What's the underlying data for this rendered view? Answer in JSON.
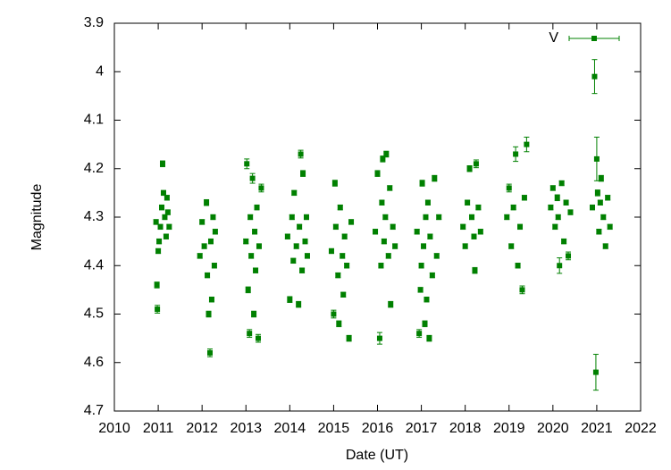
{
  "chart_data": {
    "type": "scatter",
    "xlabel": "Date (UT)",
    "ylabel": "Magnitude",
    "xlim": [
      2010,
      2022
    ],
    "xticks": [
      2010,
      2011,
      2012,
      2013,
      2014,
      2015,
      2016,
      2017,
      2018,
      2019,
      2020,
      2021,
      2022
    ],
    "ylim": [
      3.9,
      4.7
    ],
    "yticks": [
      3.9,
      4,
      4.1,
      4.2,
      4.3,
      4.4,
      4.5,
      4.6,
      4.7
    ],
    "y_inverted": true,
    "legend": "top-right",
    "series": [
      {
        "name": "V",
        "color": "#008000",
        "x": [
          2010.95,
          2010.97,
          2010.98,
          2011.0,
          2011.02,
          2011.05,
          2011.08,
          2011.1,
          2011.12,
          2011.15,
          2011.18,
          2011.2,
          2011.22,
          2011.25,
          2011.95,
          2012.0,
          2012.05,
          2012.1,
          2012.12,
          2012.15,
          2012.18,
          2012.2,
          2012.22,
          2012.25,
          2012.28,
          2012.3,
          2013.0,
          2013.02,
          2013.05,
          2013.08,
          2013.1,
          2013.12,
          2013.15,
          2013.18,
          2013.2,
          2013.22,
          2013.25,
          2013.28,
          2013.3,
          2013.35,
          2013.95,
          2014.0,
          2014.05,
          2014.08,
          2014.1,
          2014.15,
          2014.2,
          2014.22,
          2014.25,
          2014.28,
          2014.3,
          2014.35,
          2014.38,
          2014.4,
          2014.95,
          2015.0,
          2015.03,
          2015.05,
          2015.1,
          2015.12,
          2015.15,
          2015.2,
          2015.22,
          2015.25,
          2015.3,
          2015.35,
          2015.4,
          2015.95,
          2016.0,
          2016.05,
          2016.08,
          2016.1,
          2016.12,
          2016.15,
          2016.18,
          2016.2,
          2016.25,
          2016.28,
          2016.3,
          2016.35,
          2016.4,
          2016.9,
          2016.95,
          2016.98,
          2017.0,
          2017.02,
          2017.05,
          2017.08,
          2017.1,
          2017.12,
          2017.15,
          2017.18,
          2017.2,
          2017.25,
          2017.3,
          2017.35,
          2017.4,
          2017.95,
          2018.0,
          2018.05,
          2018.1,
          2018.15,
          2018.2,
          2018.22,
          2018.25,
          2018.3,
          2018.35,
          2018.95,
          2019.0,
          2019.05,
          2019.1,
          2019.15,
          2019.2,
          2019.25,
          2019.3,
          2019.35,
          2019.4,
          2019.95,
          2020.0,
          2020.05,
          2020.1,
          2020.12,
          2020.15,
          2020.2,
          2020.25,
          2020.3,
          2020.35,
          2020.4,
          2020.9,
          2020.95,
          2020.98,
          2021.0,
          2021.02,
          2021.05,
          2021.08,
          2021.1,
          2021.15,
          2021.2,
          2021.25,
          2021.3
        ],
        "values": [
          4.31,
          4.44,
          4.49,
          4.37,
          4.35,
          4.32,
          4.28,
          4.19,
          4.25,
          4.3,
          4.34,
          4.26,
          4.29,
          4.32,
          4.38,
          4.31,
          4.36,
          4.27,
          4.42,
          4.5,
          4.58,
          4.35,
          4.47,
          4.3,
          4.4,
          4.33,
          4.35,
          4.19,
          4.45,
          4.54,
          4.3,
          4.38,
          4.22,
          4.5,
          4.33,
          4.41,
          4.28,
          4.55,
          4.36,
          4.24,
          4.34,
          4.47,
          4.3,
          4.39,
          4.25,
          4.36,
          4.48,
          4.32,
          4.17,
          4.41,
          4.21,
          4.35,
          4.3,
          4.38,
          4.37,
          4.5,
          4.23,
          4.32,
          4.42,
          4.52,
          4.28,
          4.38,
          4.46,
          4.34,
          4.4,
          4.55,
          4.31,
          4.33,
          4.21,
          4.55,
          4.4,
          4.27,
          4.18,
          4.35,
          4.3,
          4.17,
          4.38,
          4.24,
          4.48,
          4.32,
          4.36,
          4.33,
          4.54,
          4.45,
          4.4,
          4.23,
          4.36,
          4.52,
          4.3,
          4.47,
          4.27,
          4.55,
          4.34,
          4.42,
          4.22,
          4.38,
          4.3,
          4.32,
          4.36,
          4.27,
          4.2,
          4.3,
          4.34,
          4.41,
          4.19,
          4.28,
          4.33,
          4.3,
          4.24,
          4.36,
          4.28,
          4.17,
          4.4,
          4.32,
          4.45,
          4.26,
          4.15,
          4.28,
          4.24,
          4.32,
          4.26,
          4.3,
          4.4,
          4.23,
          4.35,
          4.27,
          4.38,
          4.29,
          4.28,
          4.01,
          4.62,
          4.18,
          4.25,
          4.33,
          4.27,
          4.22,
          4.3,
          4.36,
          4.26,
          4.32
        ],
        "errors": [
          0.005,
          0.006,
          0.008,
          0.005,
          0.005,
          0.005,
          0.005,
          0.006,
          0.005,
          0.005,
          0.005,
          0.005,
          0.005,
          0.005,
          0.005,
          0.005,
          0.005,
          0.006,
          0.005,
          0.006,
          0.008,
          0.005,
          0.005,
          0.005,
          0.005,
          0.005,
          0.005,
          0.01,
          0.006,
          0.008,
          0.005,
          0.005,
          0.01,
          0.006,
          0.005,
          0.005,
          0.005,
          0.008,
          0.005,
          0.008,
          0.005,
          0.006,
          0.005,
          0.005,
          0.005,
          0.005,
          0.006,
          0.005,
          0.008,
          0.005,
          0.006,
          0.005,
          0.005,
          0.005,
          0.005,
          0.008,
          0.006,
          0.005,
          0.005,
          0.006,
          0.005,
          0.005,
          0.005,
          0.005,
          0.005,
          0.006,
          0.005,
          0.005,
          0.006,
          0.012,
          0.005,
          0.005,
          0.006,
          0.005,
          0.005,
          0.006,
          0.005,
          0.005,
          0.006,
          0.005,
          0.005,
          0.005,
          0.008,
          0.005,
          0.005,
          0.006,
          0.005,
          0.006,
          0.005,
          0.005,
          0.005,
          0.006,
          0.005,
          0.005,
          0.006,
          0.005,
          0.005,
          0.005,
          0.005,
          0.005,
          0.006,
          0.005,
          0.005,
          0.006,
          0.008,
          0.005,
          0.005,
          0.005,
          0.008,
          0.005,
          0.005,
          0.015,
          0.005,
          0.005,
          0.008,
          0.005,
          0.015,
          0.005,
          0.005,
          0.005,
          0.006,
          0.005,
          0.016,
          0.005,
          0.005,
          0.005,
          0.008,
          0.005,
          0.005,
          0.035,
          0.037,
          0.045,
          0.006,
          0.005,
          0.005,
          0.006,
          0.005,
          0.005,
          0.005,
          0.005
        ]
      }
    ]
  }
}
